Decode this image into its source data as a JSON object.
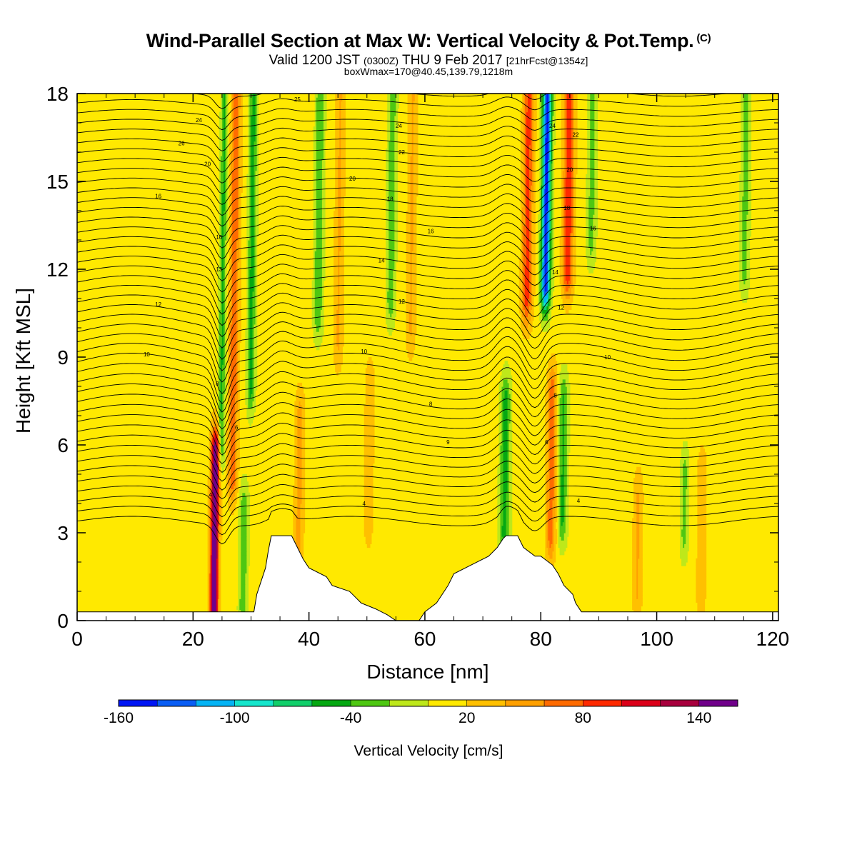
{
  "chart_data": {
    "type": "heatmap",
    "title": "Wind-Parallel Section at Max W: Vertical Velocity & Pot.Temp.",
    "title_mark": "(C)",
    "subtitle_main": "Valid 1200 JST",
    "subtitle_utc": "(0300Z)",
    "subtitle_date": "THU 9 Feb 2017",
    "subtitle_fcst": "[21hrFcst@1354z]",
    "subtitle2": "boxWmax=170@40.45,139.79,1218m",
    "xlabel": "Distance [nm]",
    "ylabel": "Height [Kft MSL]",
    "xlim": [
      0,
      121
    ],
    "ylim": [
      0,
      18
    ],
    "x_ticks": [
      0,
      20,
      40,
      60,
      80,
      100,
      120
    ],
    "x_tick_labels": [
      "0",
      "20",
      "40",
      "60",
      "80",
      "100",
      "120"
    ],
    "y_ticks": [
      0,
      3,
      6,
      9,
      12,
      15,
      18
    ],
    "y_tick_labels": [
      "0",
      "3",
      "6",
      "9",
      "12",
      "15",
      "18"
    ],
    "colorbar": {
      "label": "Vertical Velocity [cm/s]",
      "min": -160,
      "max": 160,
      "levels": [
        -160,
        -140,
        -120,
        -100,
        -80,
        -60,
        -40,
        -20,
        0,
        20,
        40,
        60,
        80,
        100,
        120,
        140,
        160
      ],
      "tick_values": [
        -160,
        -100,
        -40,
        20,
        80,
        140
      ],
      "tick_labels": [
        "-160",
        "-100",
        "-40",
        "20",
        "80",
        "140"
      ],
      "colors": [
        "#0016f5",
        "#0a5ef5",
        "#05b4f5",
        "#16e6cc",
        "#11cf6a",
        "#05a812",
        "#4ec712",
        "#bee81a",
        "#ffe900",
        "#ffc000",
        "#ffa000",
        "#ff6b00",
        "#ff2a00",
        "#dc0019",
        "#a8003d",
        "#70008a"
      ]
    },
    "background_value": 10,
    "updraft_features": [
      {
        "x": 24.0,
        "z_bottom": 0.3,
        "z_top": 5.6,
        "width_nm": 0.7,
        "w_max": 170
      },
      {
        "x": 27.0,
        "z_bottom": 5.0,
        "z_top": 18,
        "width_nm": 0.8,
        "w_max": 70
      },
      {
        "x": 38.5,
        "z_bottom": 2.5,
        "z_top": 7.0,
        "width_nm": 0.8,
        "w_max": 40
      },
      {
        "x": 45.0,
        "z_bottom": 9.5,
        "z_top": 18,
        "width_nm": 0.8,
        "w_max": 35
      },
      {
        "x": 50.5,
        "z_bottom": 3.5,
        "z_top": 8.0,
        "width_nm": 0.8,
        "w_max": 30
      },
      {
        "x": 57.5,
        "z_bottom": 10.0,
        "z_top": 18,
        "width_nm": 0.8,
        "w_max": 35
      },
      {
        "x": 77.5,
        "z_bottom": 11.0,
        "z_top": 18,
        "width_nm": 0.9,
        "w_max": 80
      },
      {
        "x": 84.5,
        "z_bottom": 12.0,
        "z_top": 18,
        "width_nm": 0.9,
        "w_max": 90
      },
      {
        "x": 82.0,
        "z_bottom": 3.0,
        "z_top": 7.8,
        "width_nm": 0.8,
        "w_max": 65
      },
      {
        "x": 97.0,
        "z_bottom": 1.0,
        "z_top": 4.2,
        "width_nm": 0.8,
        "w_max": 35
      },
      {
        "x": 108.0,
        "z_bottom": 1.0,
        "z_top": 5.0,
        "width_nm": 0.8,
        "w_max": 30
      }
    ],
    "downdraft_features": [
      {
        "x": 25.0,
        "z_bottom": 6.0,
        "z_top": 18,
        "width_nm": 0.6,
        "w_min": -50
      },
      {
        "x": 30.0,
        "z_bottom": 8.0,
        "z_top": 18,
        "width_nm": 0.7,
        "w_min": -55
      },
      {
        "x": 29.0,
        "z_bottom": 0.5,
        "z_top": 3.8,
        "width_nm": 0.8,
        "w_min": -40
      },
      {
        "x": 41.5,
        "z_bottom": 10.5,
        "z_top": 18,
        "width_nm": 0.8,
        "w_min": -45
      },
      {
        "x": 54.0,
        "z_bottom": 11.0,
        "z_top": 18,
        "width_nm": 0.8,
        "w_min": -40
      },
      {
        "x": 74.0,
        "z_bottom": 3.0,
        "z_top": 7.5,
        "width_nm": 0.9,
        "w_min": -55
      },
      {
        "x": 80.7,
        "z_bottom": 11.5,
        "z_top": 18,
        "width_nm": 0.8,
        "w_min": -155
      },
      {
        "x": 84.0,
        "z_bottom": 3.5,
        "z_top": 7.5,
        "width_nm": 0.8,
        "w_min": -50
      },
      {
        "x": 88.5,
        "z_bottom": 13.0,
        "z_top": 18,
        "width_nm": 0.8,
        "w_min": -35
      },
      {
        "x": 105.0,
        "z_bottom": 3.0,
        "z_top": 5.0,
        "width_nm": 0.7,
        "w_min": -35
      },
      {
        "x": 115.0,
        "z_bottom": 12.0,
        "z_top": 18,
        "width_nm": 0.8,
        "w_min": -35
      }
    ],
    "terrain": {
      "x": [
        0,
        30.5,
        31.0,
        32.5,
        33.0,
        33.5,
        37.0,
        38.0,
        39.0,
        40.0,
        43.0,
        44.0,
        47.0,
        48.0,
        49.0,
        51.5,
        53.5,
        55.0,
        57.5,
        59.0,
        60.0,
        62.0,
        63.0,
        64.0,
        65.0,
        68.0,
        71.0,
        72.5,
        73.5,
        74.0,
        76.0,
        77.0,
        79.0,
        80.0,
        82.0,
        83.0,
        84.0,
        85.5,
        86.0,
        87.0,
        121
      ],
      "z_kft": [
        0.3,
        0.3,
        0.9,
        1.8,
        2.4,
        2.9,
        2.9,
        2.5,
        2.1,
        1.8,
        1.5,
        1.2,
        1.0,
        0.8,
        0.6,
        0.4,
        0.2,
        0.0,
        0.0,
        0.0,
        0.3,
        0.6,
        0.9,
        1.2,
        1.6,
        1.9,
        2.2,
        2.5,
        2.8,
        2.9,
        2.9,
        2.5,
        2.2,
        2.2,
        1.9,
        1.6,
        1.2,
        0.9,
        0.6,
        0.3,
        0.3
      ]
    },
    "contour_labels": [
      {
        "text": "4",
        "x": 23.0,
        "z": 4.3
      },
      {
        "text": "6",
        "x": 27.5,
        "z": 6.6
      },
      {
        "text": "8",
        "x": 24.2,
        "z": 8.1
      },
      {
        "text": "10",
        "x": 12.0,
        "z": 9.1
      },
      {
        "text": "12",
        "x": 14.0,
        "z": 10.8
      },
      {
        "text": "13",
        "x": 24.5,
        "z": 12.0
      },
      {
        "text": "16",
        "x": 14.0,
        "z": 14.5
      },
      {
        "text": "16",
        "x": 24.5,
        "z": 13.1
      },
      {
        "text": "20",
        "x": 22.5,
        "z": 15.6
      },
      {
        "text": "26",
        "x": 18.0,
        "z": 16.3
      },
      {
        "text": "24",
        "x": 21.0,
        "z": 17.1
      },
      {
        "text": "25",
        "x": 38.0,
        "z": 17.8
      },
      {
        "text": "24",
        "x": 55.5,
        "z": 16.9
      },
      {
        "text": "22",
        "x": 56.0,
        "z": 16.0
      },
      {
        "text": "20",
        "x": 47.5,
        "z": 15.1
      },
      {
        "text": "18",
        "x": 54.0,
        "z": 14.4
      },
      {
        "text": "16",
        "x": 61.0,
        "z": 13.3
      },
      {
        "text": "14",
        "x": 52.5,
        "z": 12.3
      },
      {
        "text": "12",
        "x": 56.0,
        "z": 10.9
      },
      {
        "text": "10",
        "x": 49.5,
        "z": 9.2
      },
      {
        "text": "8",
        "x": 61.0,
        "z": 7.4
      },
      {
        "text": "9",
        "x": 64.0,
        "z": 6.1
      },
      {
        "text": "4",
        "x": 49.5,
        "z": 4.0
      },
      {
        "text": "24",
        "x": 82.0,
        "z": 16.9
      },
      {
        "text": "22",
        "x": 86.0,
        "z": 16.6
      },
      {
        "text": "20",
        "x": 85.0,
        "z": 15.4
      },
      {
        "text": "18",
        "x": 84.5,
        "z": 14.1
      },
      {
        "text": "16",
        "x": 89.0,
        "z": 13.4
      },
      {
        "text": "14",
        "x": 82.5,
        "z": 11.9
      },
      {
        "text": "12",
        "x": 83.5,
        "z": 10.7
      },
      {
        "text": "10",
        "x": 91.5,
        "z": 9.0
      },
      {
        "text": "8",
        "x": 82.5,
        "z": 7.7
      },
      {
        "text": "6",
        "x": 81.0,
        "z": 6.1
      },
      {
        "text": "4",
        "x": 86.5,
        "z": 4.1
      }
    ]
  }
}
